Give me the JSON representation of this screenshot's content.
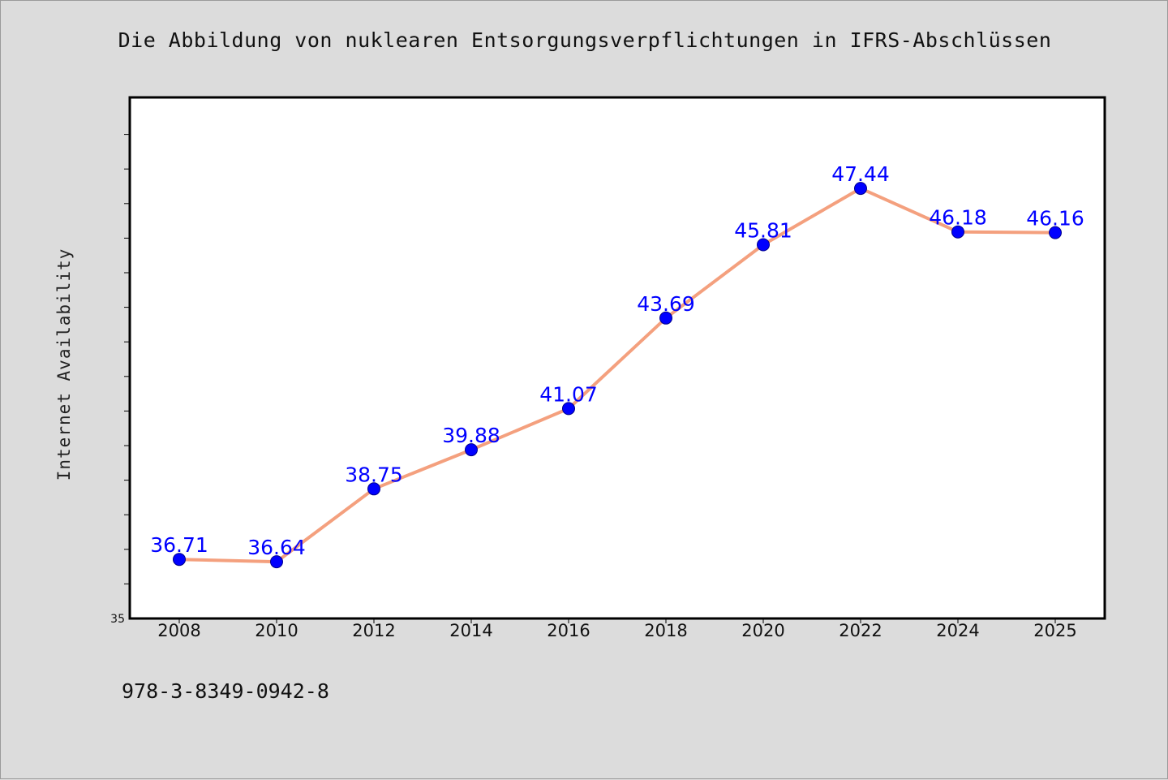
{
  "title": "Die Abbildung von nuklearen Entsorgungsverpflichtungen in IFRS-Abschlüssen",
  "footer_code": "978-3-8349-0942-8",
  "chart_data": {
    "type": "line",
    "title": "Die Abbildung von nuklearen Entsorgungsverpflichtungen in IFRS-Abschlüssen",
    "xlabel": "",
    "ylabel": "Internet Availability",
    "categories": [
      "2008",
      "2010",
      "2012",
      "2014",
      "2016",
      "2018",
      "2020",
      "2022",
      "2024",
      "2025"
    ],
    "series": [
      {
        "values": [
          36.71,
          36.64,
          38.75,
          39.88,
          41.07,
          43.69,
          45.81,
          47.44,
          46.18,
          46.16
        ],
        "labels": [
          "36.71",
          "36.64",
          "38.75",
          "39.88",
          "41.07",
          "43.69",
          "45.81",
          "47.44",
          "46.18",
          "46.16"
        ]
      }
    ],
    "ylim": [
      35,
      50
    ],
    "y_tick_labels": [
      "35"
    ],
    "grid": false,
    "legend": "none",
    "colors": {
      "line": "#f4a07e",
      "marker": "#0000ff",
      "data_label": "#0000ff",
      "plot_background": "#ffffff",
      "figure_background": "#dcdcdc"
    }
  }
}
